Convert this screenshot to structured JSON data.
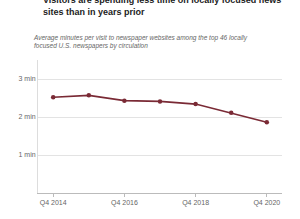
{
  "chart_data": {
    "type": "line",
    "title": "Visitors are spending less time on locally focused news sites than in years prior",
    "subtitle": "Average minutes per visit to newspaper websites among the top 46 locally focused U.S. newspapers by circulation",
    "categories": [
      "Q4 2014",
      null,
      "Q4 2016",
      null,
      "Q4 2018",
      null,
      "Q4 2020"
    ],
    "values": [
      2.52,
      2.57,
      2.43,
      2.41,
      2.34,
      2.11,
      1.86
    ],
    "color": "#7a2a35",
    "marker": "circle",
    "ylim": [
      0,
      3.5
    ],
    "yticks": [
      {
        "value": 1,
        "label": "1 min"
      },
      {
        "value": 2,
        "label": "2 min"
      },
      {
        "value": 3,
        "label": "3 min"
      }
    ],
    "grid": true
  }
}
